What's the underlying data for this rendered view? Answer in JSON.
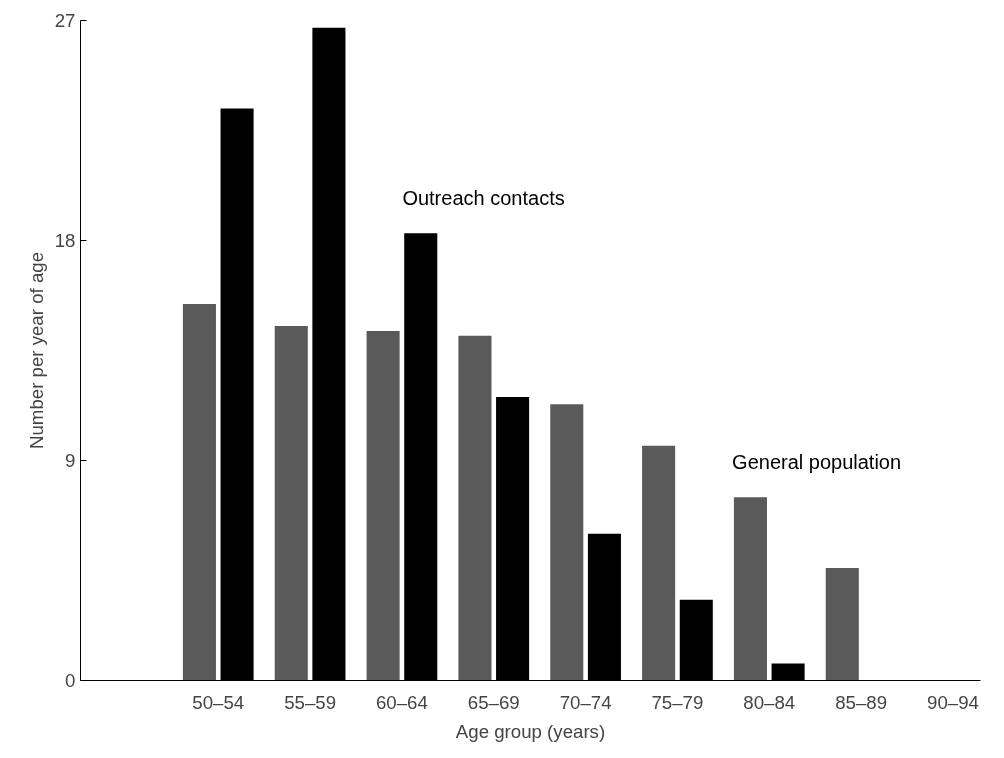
{
  "chart_data": {
    "type": "bar",
    "xlabel": "Age group (years)",
    "ylabel": "Number per year of age",
    "categories": [
      "50–54",
      "55–59",
      "60–64",
      "65–69",
      "70–74",
      "75–79",
      "80–84",
      "85–89",
      "90–94"
    ],
    "series": [
      {
        "name": "General population",
        "color": "#5a5a5a",
        "values": [
          15.4,
          14.5,
          14.3,
          14.1,
          11.3,
          9.6,
          7.5,
          4.6,
          0
        ]
      },
      {
        "name": "Outreach contacts",
        "color": "#000000",
        "values": [
          23.4,
          26.7,
          18.3,
          11.6,
          6.0,
          3.3,
          0.7,
          0,
          0
        ]
      }
    ],
    "ylim": [
      0,
      27
    ],
    "yticks": [
      0,
      9,
      18,
      27
    ],
    "grid": false
  }
}
